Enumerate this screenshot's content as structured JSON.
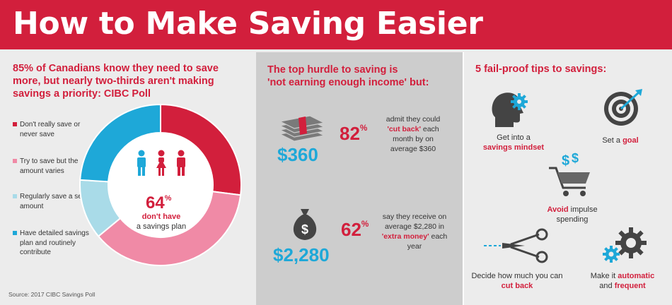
{
  "title": "How to Make Saving Easier",
  "colors": {
    "red": "#d21f3c",
    "pink": "#f08aa6",
    "light_blue": "#a9dbe8",
    "blue": "#1ea8d8"
  },
  "left": {
    "heading": "85% of Canadians know they need to save more, but nearly two-thirds aren't making savings a priority: CIBC Poll",
    "legend": [
      {
        "label": "Don't really save or never save",
        "color": "#d21f3c"
      },
      {
        "label": "Try to save but the amount varies",
        "color": "#f08aa6"
      },
      {
        "label": "Regularly save a set amount",
        "color": "#a9dbe8"
      },
      {
        "label": "Have detailed savings plan and routinely contribute",
        "color": "#1ea8d8"
      }
    ],
    "donut_values": [
      0.27,
      0.37,
      0.12,
      0.24
    ],
    "center_number": "64",
    "center_percent": "%",
    "center_bold": "don't have",
    "center_text": "a savings plan",
    "source": "Source: 2017 CIBC Savings Poll"
  },
  "middle": {
    "heading_line1": "The top hurdle to saving is",
    "heading_line2": "'not earning enough income' but:",
    "stat1": {
      "amount": "$360",
      "pct_number": "82",
      "pct_sign": "%",
      "pre": "admit they could",
      "bold": "'cut back'",
      "post": "each month by on average $360"
    },
    "stat2": {
      "amount": "$2,280",
      "pct_number": "62",
      "pct_sign": "%",
      "pre": "say they receive on average $2,280 in",
      "bold": "'extra money'",
      "post": "each year"
    }
  },
  "right": {
    "heading": "5 fail-proof tips to savings:",
    "tips": [
      {
        "pre": "Get into a",
        "bold": "savings mindset",
        "post": "",
        "icon": "head-gear-icon"
      },
      {
        "pre": "Set a",
        "bold": "goal",
        "post": "",
        "icon": "target-icon"
      },
      {
        "pre": "",
        "bold": "Avoid",
        "post": "impulse spending",
        "icon": "shopping-cart-icon"
      },
      {
        "pre": "Decide how much you can",
        "bold": "cut back",
        "post": "",
        "icon": "scissors-icon"
      },
      {
        "pre": "Make it",
        "bold": "automatic",
        "mid": "and",
        "bold2": "frequent",
        "icon": "gears-icon"
      }
    ]
  }
}
